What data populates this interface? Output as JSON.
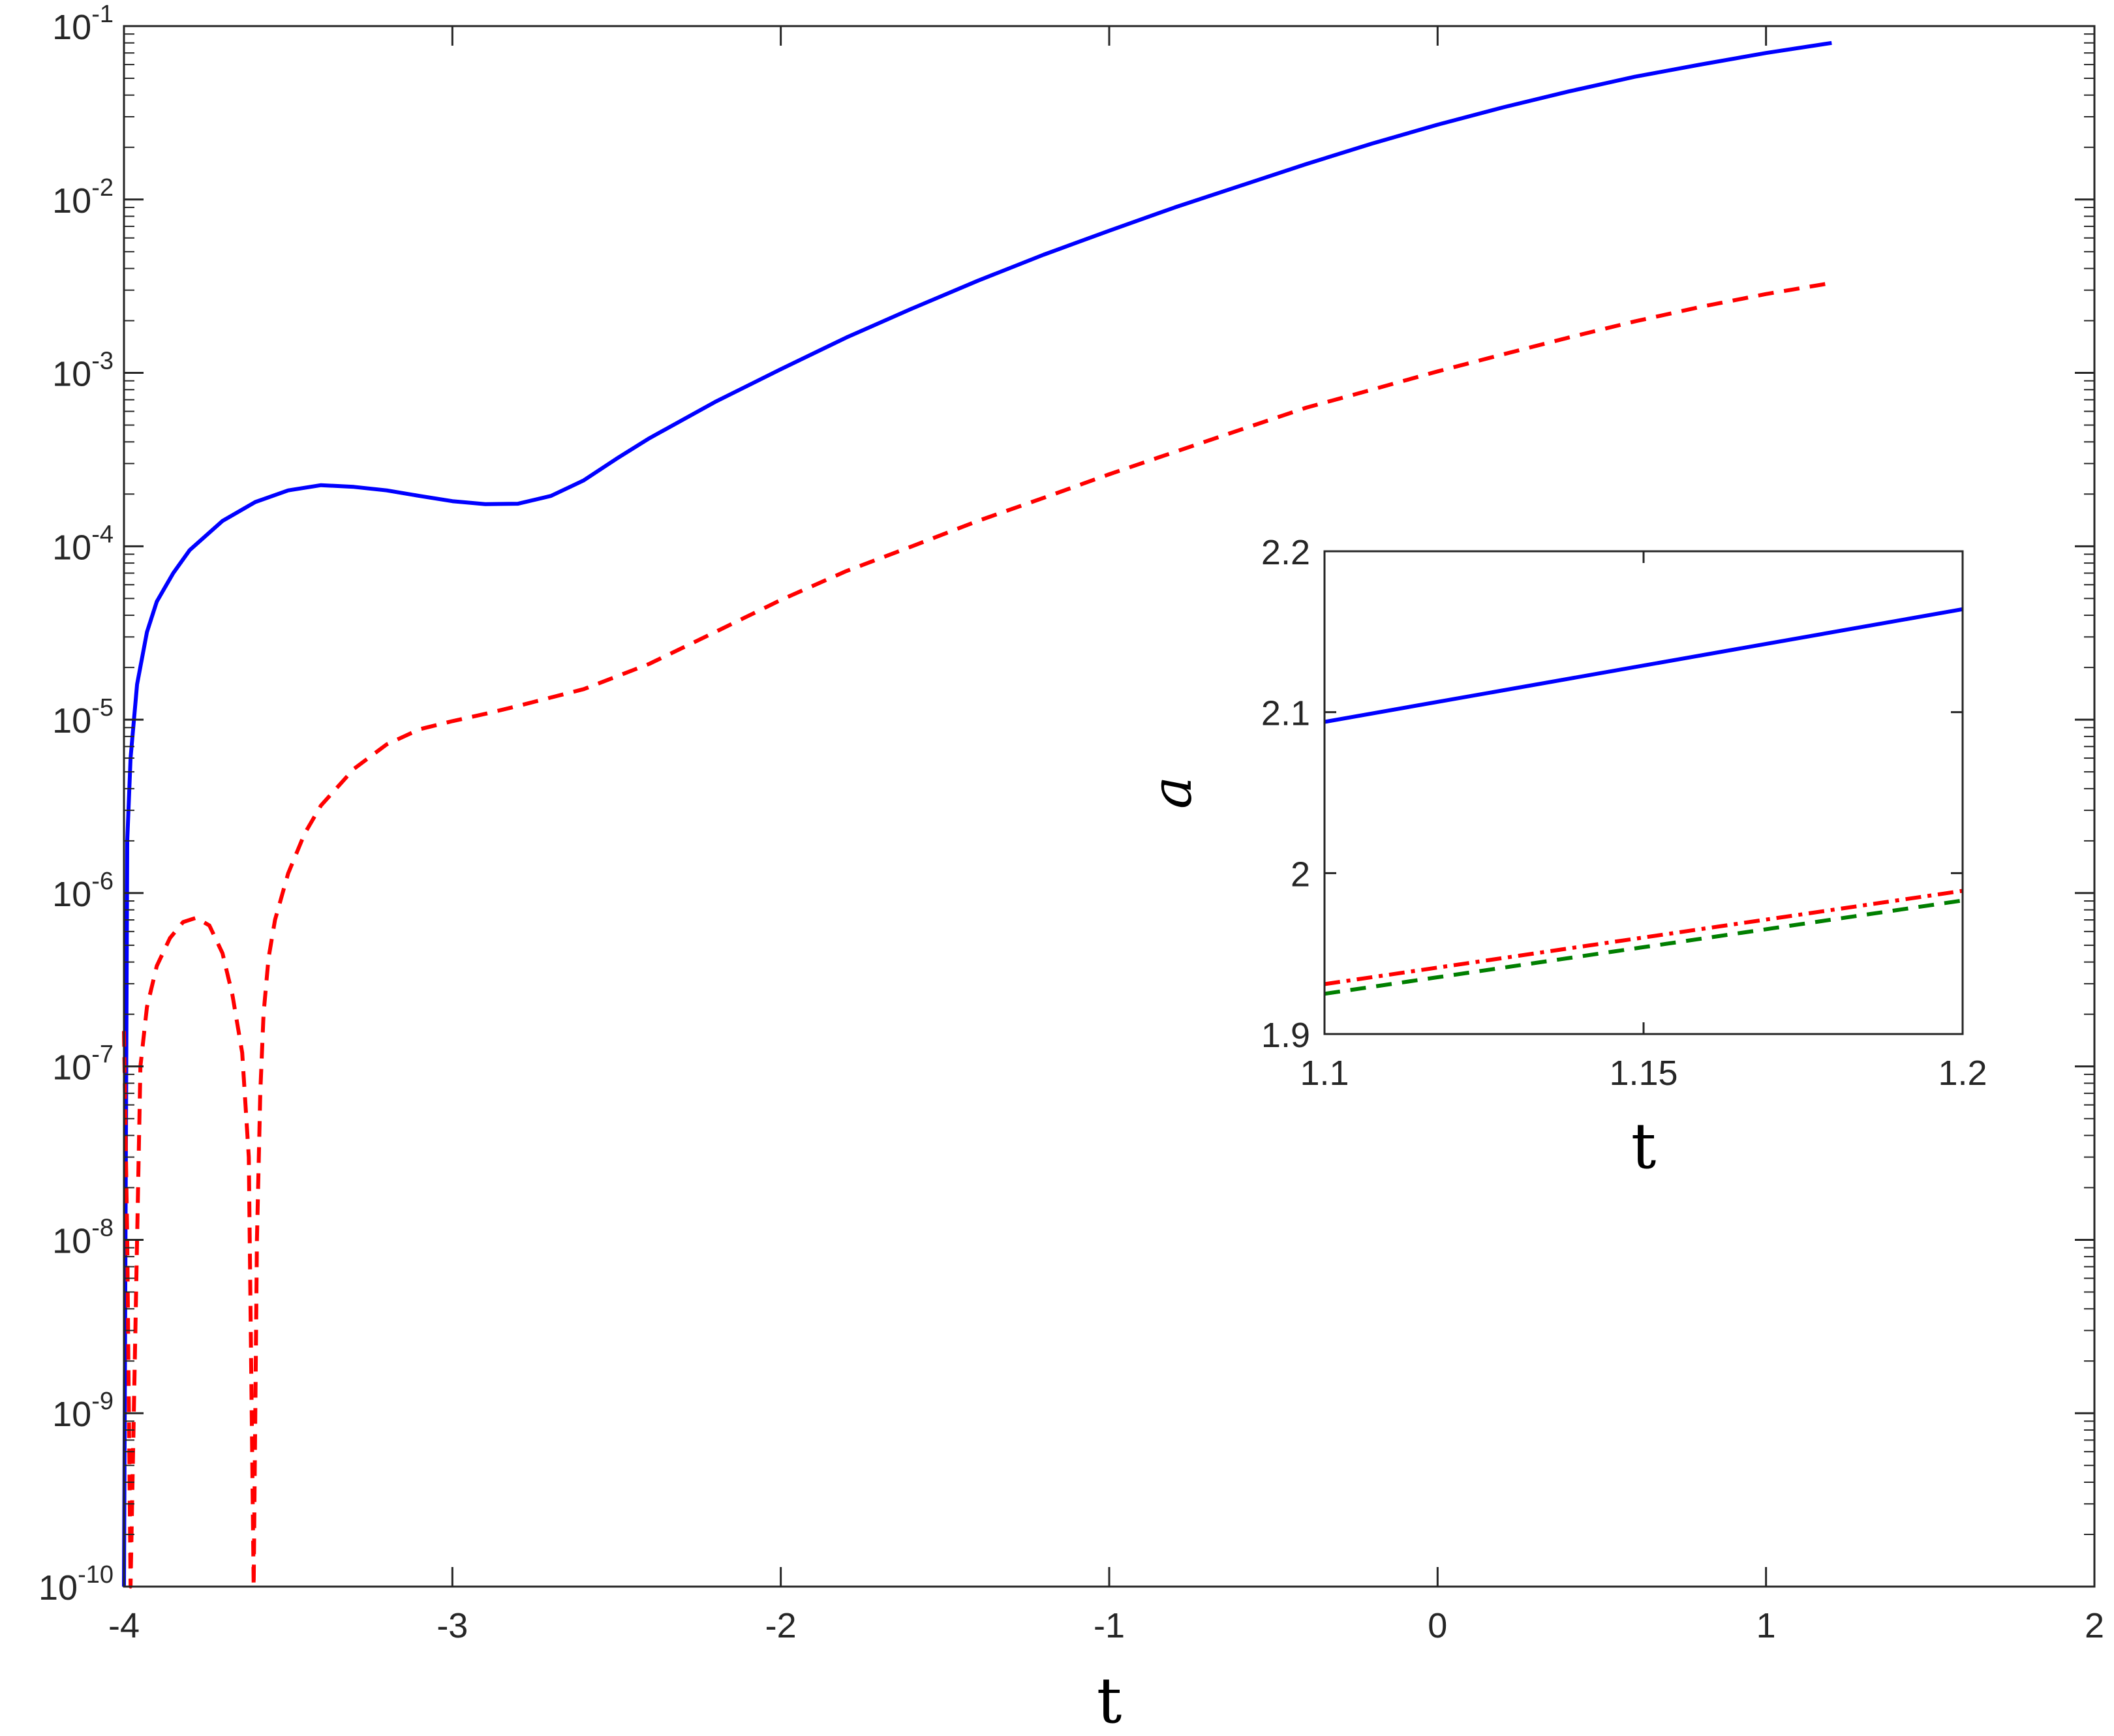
{
  "chart_data": [
    {
      "type": "line",
      "xlabel": "t",
      "ylabel": "",
      "xlim": [
        -4,
        2
      ],
      "ylim": [
        1e-10,
        0.1
      ],
      "yscale": "log",
      "grid": false,
      "x_ticks": [
        "-4",
        "-3",
        "-2",
        "-1",
        "0",
        "1",
        "2"
      ],
      "y_ticks": [
        {
          "base": "10",
          "exp": "-10"
        },
        {
          "base": "10",
          "exp": "-9"
        },
        {
          "base": "10",
          "exp": "-8"
        },
        {
          "base": "10",
          "exp": "-7"
        },
        {
          "base": "10",
          "exp": "-6"
        },
        {
          "base": "10",
          "exp": "-5"
        },
        {
          "base": "10",
          "exp": "-4"
        },
        {
          "base": "10",
          "exp": "-3"
        },
        {
          "base": "10",
          "exp": "-2"
        },
        {
          "base": "10",
          "exp": "-1"
        }
      ],
      "series": [
        {
          "color": "#0000ff",
          "style": "solid",
          "x": [
            -4.0,
            -3.99,
            -3.98,
            -3.96,
            -3.93,
            -3.9,
            -3.85,
            -3.8,
            -3.7,
            -3.6,
            -3.5,
            -3.4,
            -3.3,
            -3.2,
            -3.1,
            -3.0,
            -2.9,
            -2.8,
            -2.7,
            -2.6,
            -2.5,
            -2.4,
            -2.2,
            -2.0,
            -1.8,
            -1.6,
            -1.4,
            -1.2,
            -1.0,
            -0.8,
            -0.6,
            -0.4,
            -0.2,
            0.0,
            0.2,
            0.4,
            0.6,
            0.8,
            1.0,
            1.2
          ],
          "y": [
            1e-10,
            2e-06,
            6e-06,
            1.6e-05,
            3.2e-05,
            4.8e-05,
            7e-05,
            9.5e-05,
            0.00014,
            0.00018,
            0.00021,
            0.000225,
            0.00022,
            0.00021,
            0.000195,
            0.000182,
            0.000175,
            0.000176,
            0.000195,
            0.00024,
            0.00032,
            0.00042,
            0.00068,
            0.00105,
            0.0016,
            0.00235,
            0.0034,
            0.0048,
            0.0066,
            0.009,
            0.012,
            0.016,
            0.021,
            0.027,
            0.034,
            0.042,
            0.051,
            0.06,
            0.07,
            0.08
          ]
        },
        {
          "color": "#ff0000",
          "style": "dashed",
          "x": [
            -4.0,
            -3.99,
            -3.98,
            -3.97,
            -3.96,
            -3.95,
            -3.93,
            -3.9,
            -3.86,
            -3.82,
            -3.78,
            -3.74,
            -3.7,
            -3.67,
            -3.64,
            -3.62,
            -3.605,
            -3.595,
            -3.585,
            -3.575,
            -3.56,
            -3.54,
            -3.5,
            -3.45,
            -3.4,
            -3.3,
            -3.2,
            -3.1,
            -3.0,
            -2.9,
            -2.8,
            -2.6,
            -2.4,
            -2.2,
            -2.0,
            -1.8,
            -1.6,
            -1.4,
            -1.2,
            -1.0,
            -0.8,
            -0.6,
            -0.4,
            -0.2,
            0.0,
            0.2,
            0.4,
            0.6,
            0.8,
            1.0,
            1.2
          ],
          "y": [
            1.6e-07,
            1e-08,
            1e-10,
            1e-09,
            1e-08,
            1e-07,
            2.2e-07,
            3.8e-07,
            5.5e-07,
            6.8e-07,
            7.2e-07,
            6.5e-07,
            4.5e-07,
            2.6e-07,
            1.2e-07,
            3e-08,
            1e-10,
            1e-08,
            7e-08,
            2e-07,
            4.2e-07,
            7e-07,
            1.3e-06,
            2.2e-06,
            3.2e-06,
            5.2e-06,
            7.2e-06,
            8.8e-06,
            9.8e-06,
            1.08e-05,
            1.2e-05,
            1.5e-05,
            2.1e-05,
            3.2e-05,
            4.9e-05,
            7.2e-05,
            0.0001,
            0.00014,
            0.00019,
            0.00026,
            0.00035,
            0.00047,
            0.00063,
            0.0008,
            0.00102,
            0.00128,
            0.0016,
            0.00198,
            0.0024,
            0.00285,
            0.0033
          ]
        }
      ]
    },
    {
      "type": "line",
      "xlabel": "t",
      "ylabel": "a",
      "xlim": [
        1.1,
        1.2
      ],
      "ylim": [
        1.9,
        2.2
      ],
      "grid": false,
      "x_ticks": [
        "1.1",
        "1.15",
        "1.2"
      ],
      "y_ticks": [
        "1.9",
        "2",
        "2.1",
        "2.2"
      ],
      "series": [
        {
          "color": "#0000ff",
          "style": "solid",
          "x": [
            1.1,
            1.2
          ],
          "y": [
            2.094,
            2.164
          ]
        },
        {
          "color": "#ff0000",
          "style": "dashdot",
          "x": [
            1.1,
            1.2
          ],
          "y": [
            1.931,
            1.989
          ]
        },
        {
          "color": "#007f00",
          "style": "dashed",
          "x": [
            1.1,
            1.2
          ],
          "y": [
            1.925,
            1.983
          ]
        }
      ]
    }
  ]
}
